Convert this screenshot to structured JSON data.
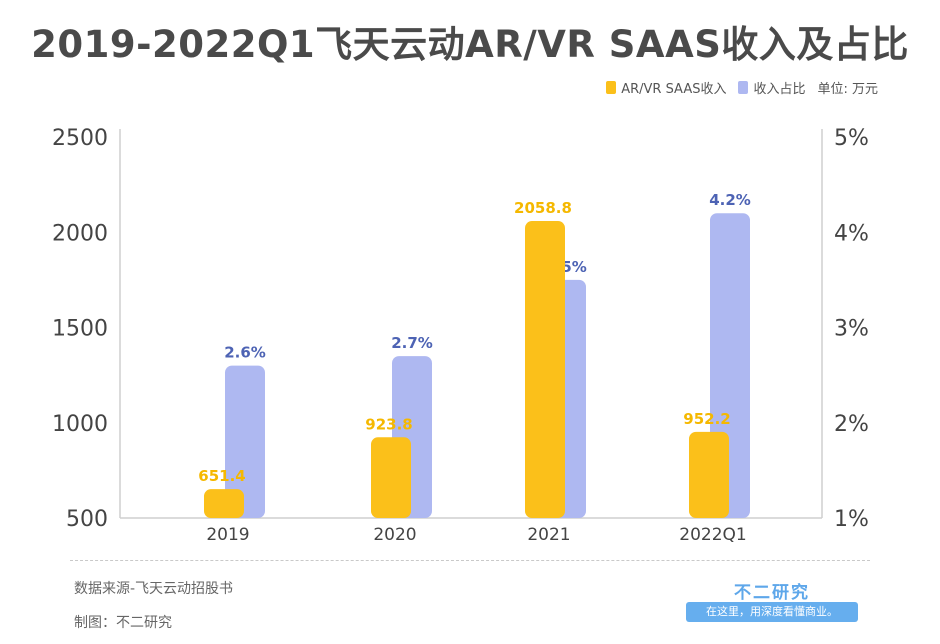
{
  "title": "2019-2022Q1飞天云动AR/VR SAAS收入及占比",
  "legend": {
    "revenue_label": "AR/VR SAAS收入",
    "ratio_label": "收入占比",
    "unit": "单位: 万元"
  },
  "colors": {
    "revenue": "#fbc01a",
    "revenue_label": "#f5b800",
    "ratio": "#aeb8f1",
    "ratio_label": "#4d63b4",
    "axis_text": "#444444",
    "axis_line": "#cfcfcf"
  },
  "chart_data": {
    "type": "bar",
    "categories": [
      "2019",
      "2020",
      "2021",
      "2022Q1"
    ],
    "series": [
      {
        "name": "AR/VR SAAS收入",
        "axis": "left",
        "values": [
          651.4,
          923.8,
          2058.8,
          952.2
        ],
        "labels": [
          "651.4",
          "923.8",
          "2058.8",
          "952.2"
        ]
      },
      {
        "name": "收入占比",
        "axis": "right",
        "values": [
          2.6,
          2.7,
          3.5,
          4.2
        ],
        "labels": [
          "2.6%",
          "2.7%",
          "3.5%",
          "4.2%"
        ]
      }
    ],
    "y_left": {
      "min": 500,
      "max": 2500,
      "ticks": [
        "500",
        "1000",
        "1500",
        "2000",
        "2500"
      ],
      "tick_values": [
        500,
        1000,
        1500,
        2000,
        2500
      ]
    },
    "y_right": {
      "min": 1,
      "max": 5,
      "ticks": [
        "1%",
        "2%",
        "3%",
        "4%",
        "5%"
      ],
      "tick_values": [
        1,
        2,
        3,
        4,
        5
      ]
    },
    "grid": false,
    "legend_position": "top-right"
  },
  "footer": {
    "source": "数据来源-飞天云动招股书",
    "credit": "制图：不二研究"
  },
  "brand": {
    "name": "不二研究",
    "slogan": "在这里，用深度看懂商业。"
  }
}
